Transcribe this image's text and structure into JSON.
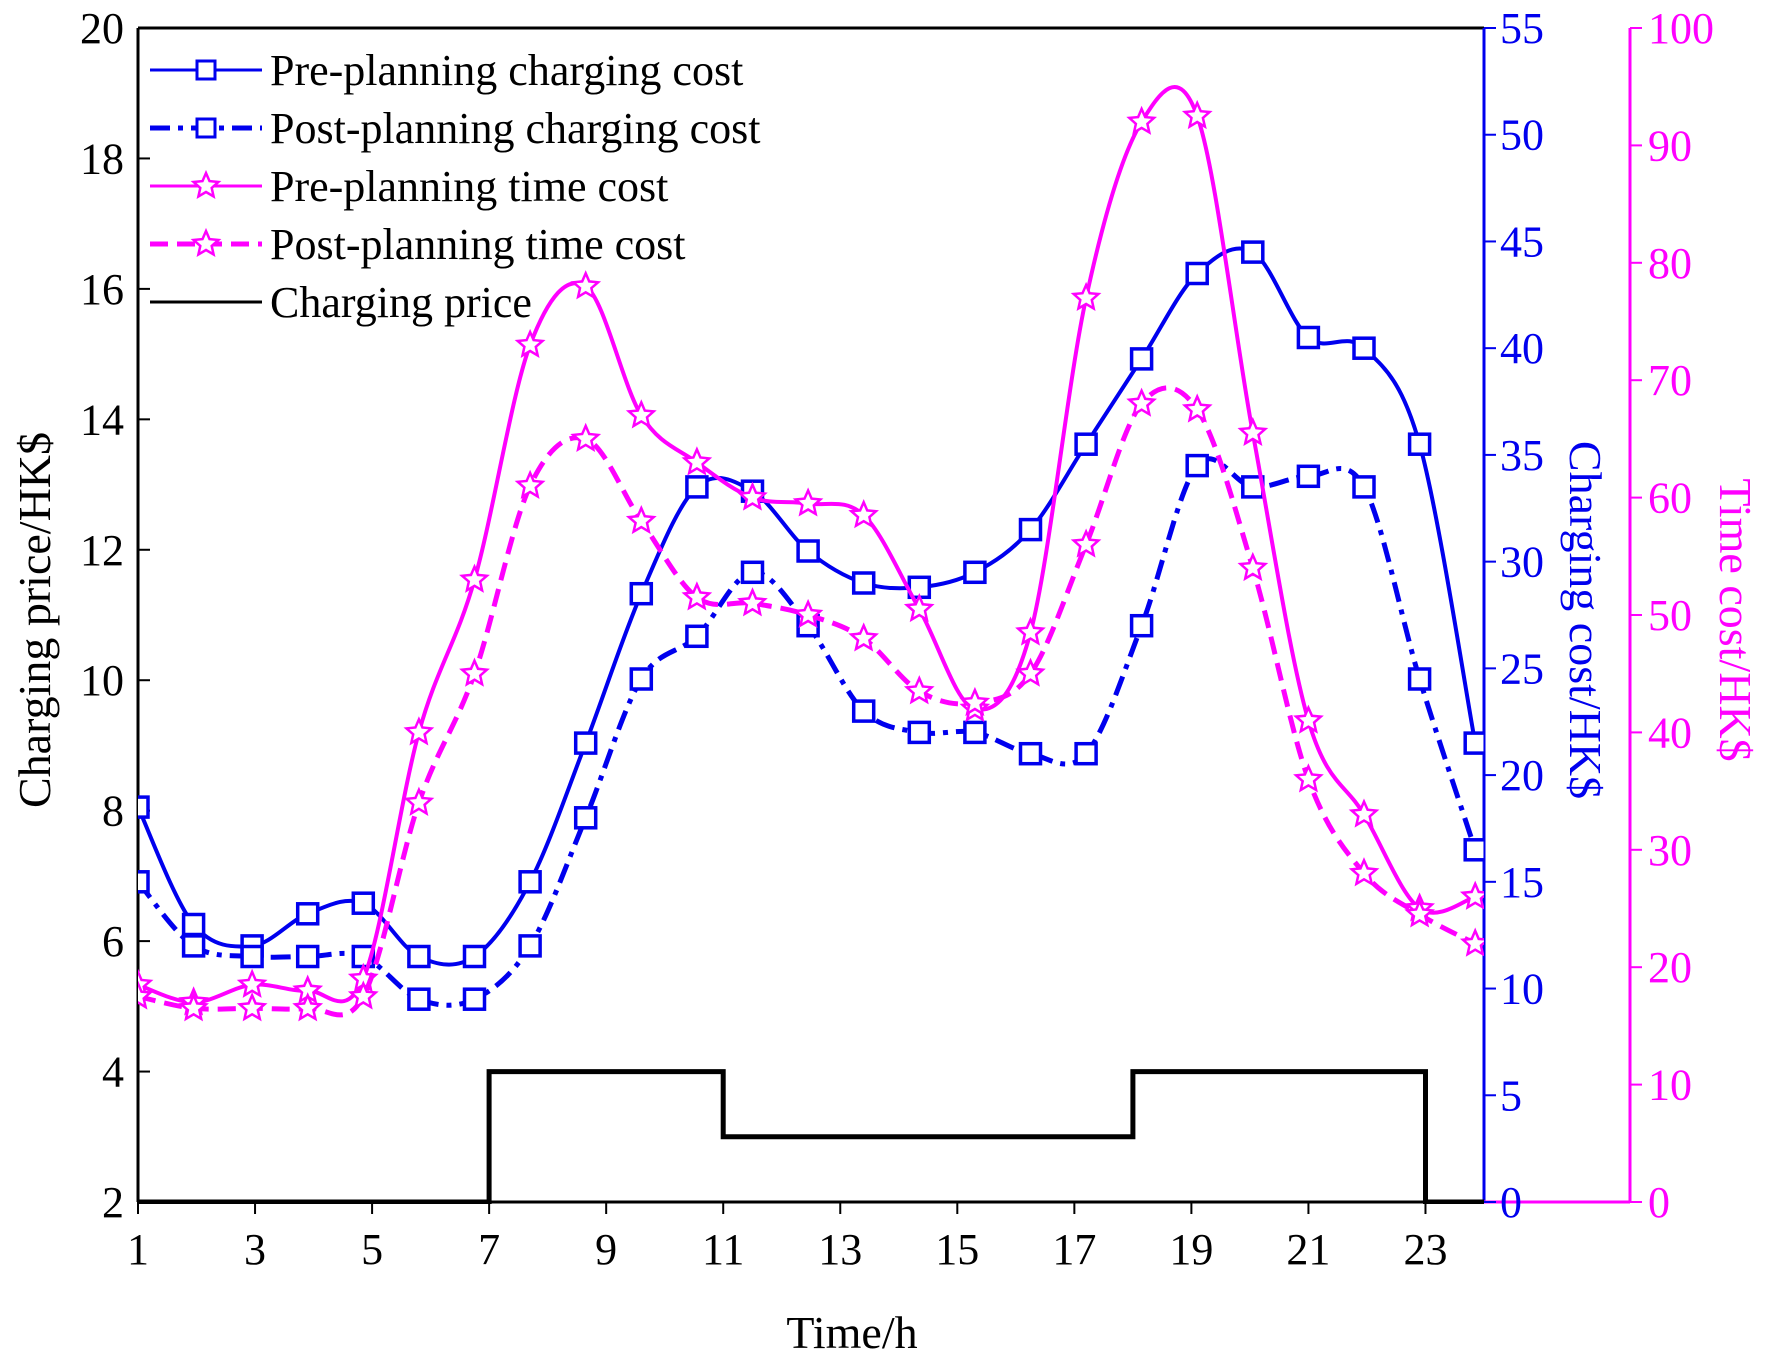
{
  "chart_data": {
    "type": "line",
    "xlabel": "Time/h",
    "ylabel_left": "Charging price/HK$",
    "ylabel_right_1": "Charging cost/HK$",
    "ylabel_right_2": "Time cost/HK$",
    "xlim": [
      1,
      24
    ],
    "ylim_left": [
      2,
      20
    ],
    "ylim_right_1": [
      0,
      55
    ],
    "ylim_right_2": [
      0,
      100
    ],
    "x_ticks": [
      "1",
      "3",
      "5",
      "7",
      "9",
      "11",
      "13",
      "15",
      "17",
      "19",
      "21",
      "23"
    ],
    "y_ticks_left": [
      "2",
      "4",
      "6",
      "8",
      "10",
      "12",
      "14",
      "16",
      "18",
      "20"
    ],
    "y_ticks_right_1": [
      "0",
      "5",
      "10",
      "15",
      "20",
      "25",
      "30",
      "35",
      "40",
      "45",
      "50",
      "55"
    ],
    "y_ticks_right_2": [
      "0",
      "10",
      "20",
      "30",
      "40",
      "50",
      "60",
      "70",
      "80",
      "90",
      "100"
    ],
    "legend_position": "top-left",
    "colors": {
      "blue": "#0000ee",
      "magenta": "#ff00ff",
      "black": "#000000"
    },
    "series": [
      {
        "name": "Pre-planning charging cost",
        "axis": "right_1",
        "color": "#0000ee",
        "style": "solid",
        "marker": "square",
        "x": [
          1,
          1.95,
          2.95,
          3.9,
          4.85,
          5.8,
          6.75,
          7.7,
          8.65,
          9.6,
          10.55,
          11.5,
          12.45,
          13.4,
          14.35,
          15.3,
          16.25,
          17.2,
          18.15,
          19.1,
          20.05,
          21,
          21.95,
          22.9,
          23.85
        ],
        "values": [
          18.5,
          13,
          12,
          13.5,
          14,
          11.5,
          11.5,
          15,
          21.5,
          28.5,
          33.5,
          33.3,
          30.5,
          29,
          28.8,
          29.5,
          31.5,
          35.5,
          39.5,
          43.5,
          44.5,
          40.5,
          40,
          35.5,
          21.5
        ]
      },
      {
        "name": "Post-planning charging cost",
        "axis": "right_1",
        "color": "#0000ee",
        "style": "dashdot",
        "marker": "square",
        "x": [
          1,
          1.95,
          2.95,
          3.9,
          4.85,
          5.8,
          6.75,
          7.7,
          8.65,
          9.6,
          10.55,
          11.5,
          12.45,
          13.4,
          14.35,
          15.3,
          16.25,
          17.2,
          18.15,
          19.1,
          20.05,
          21,
          21.95,
          22.9,
          23.85
        ],
        "values": [
          15,
          12,
          11.5,
          11.5,
          11.5,
          9.5,
          9.5,
          12,
          18,
          24.5,
          26.5,
          29.5,
          27,
          23,
          22,
          22,
          21,
          21,
          27,
          34.5,
          33.5,
          34,
          33.5,
          24.5,
          16.5
        ]
      },
      {
        "name": "Pre-planning time cost",
        "axis": "right_2",
        "color": "#ff00ff",
        "style": "solid",
        "marker": "star",
        "x": [
          1,
          1.95,
          2.95,
          3.9,
          4.85,
          5.8,
          6.75,
          7.7,
          8.65,
          9.6,
          10.55,
          11.5,
          12.45,
          13.4,
          14.35,
          15.3,
          16.25,
          17.2,
          18.15,
          19.1,
          20.05,
          21,
          21.95,
          22.9,
          23.85
        ],
        "values": [
          18.5,
          17,
          18.5,
          18,
          19,
          40,
          53,
          73,
          78,
          67,
          63,
          60,
          59.5,
          58.5,
          50.5,
          42,
          48.5,
          77,
          92,
          92.5,
          65.5,
          41,
          33,
          25,
          26
        ]
      },
      {
        "name": "Post-planning time cost",
        "axis": "right_2",
        "color": "#ff00ff",
        "style": "dashed",
        "marker": "star",
        "x": [
          1,
          1.95,
          2.95,
          3.9,
          4.85,
          5.8,
          6.75,
          7.7,
          8.65,
          9.6,
          10.55,
          11.5,
          12.45,
          13.4,
          14.35,
          15.3,
          16.25,
          17.2,
          18.15,
          19.1,
          20.05,
          21,
          21.95,
          22.9,
          23.85
        ],
        "values": [
          17.5,
          16.5,
          16.5,
          16.5,
          17.5,
          34,
          45,
          61,
          65,
          58,
          51.5,
          51,
          50,
          48,
          43.5,
          42.5,
          45,
          56,
          68,
          67.5,
          54,
          36,
          28,
          24.5,
          22
        ]
      },
      {
        "name": "Charging price",
        "axis": "left",
        "color": "#000000",
        "style": "step",
        "marker": "none",
        "x": [
          1,
          7,
          7,
          11,
          11,
          18,
          18,
          23,
          23,
          24
        ],
        "values": [
          2,
          2,
          4,
          4,
          3,
          3,
          4,
          4,
          2,
          2
        ]
      }
    ]
  }
}
